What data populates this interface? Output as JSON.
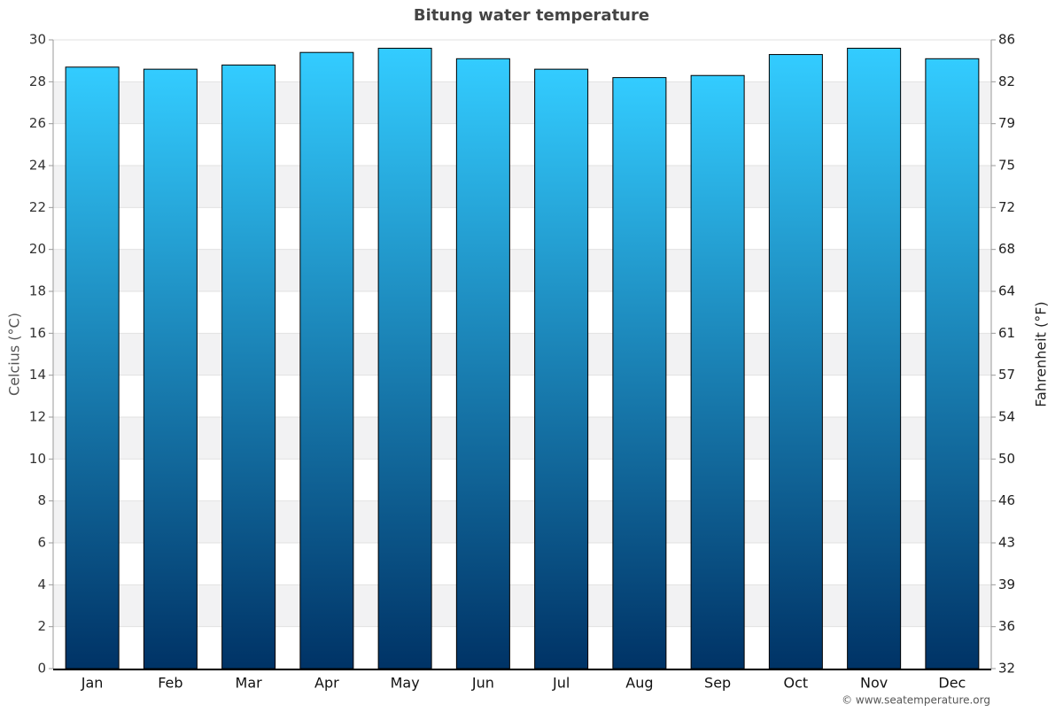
{
  "chart_data": {
    "type": "bar",
    "title": "Bitung water temperature",
    "y_label": "Celcius (°C)",
    "y2_label": "Fahrenheit (°F)",
    "categories": [
      "Jan",
      "Feb",
      "Mar",
      "Apr",
      "May",
      "Jun",
      "Jul",
      "Aug",
      "Sep",
      "Oct",
      "Nov",
      "Dec"
    ],
    "values": [
      28.7,
      28.6,
      28.8,
      29.4,
      29.6,
      29.1,
      28.6,
      28.2,
      28.3,
      29.3,
      29.6,
      29.1
    ],
    "color_top": "#33ccff",
    "color_bottom": "#003366",
    "ylim": [
      0,
      30
    ],
    "yticks": [
      0,
      2,
      4,
      6,
      8,
      10,
      12,
      14,
      16,
      18,
      20,
      22,
      24,
      26,
      28,
      30
    ],
    "y2lim": [
      32,
      86
    ],
    "y2ticks": [
      32,
      {
        "value": 35.6,
        "label": "36"
      },
      {
        "value": 39.2,
        "label": "39"
      },
      {
        "value": 42.8,
        "label": "43"
      },
      {
        "value": 46.4,
        "label": "46"
      },
      50,
      {
        "value": 53.6,
        "label": "54"
      },
      {
        "value": 57.2,
        "label": "57"
      },
      {
        "value": 60.8,
        "label": "61"
      },
      {
        "value": 64.4,
        "label": "64"
      },
      68,
      {
        "value": 71.6,
        "label": "72"
      },
      {
        "value": 75.2,
        "label": "75"
      },
      {
        "value": 78.8,
        "label": "79"
      },
      {
        "value": 82.4,
        "label": "82"
      },
      86
    ],
    "grid": true,
    "credit": "© www.seatemperature.org"
  }
}
